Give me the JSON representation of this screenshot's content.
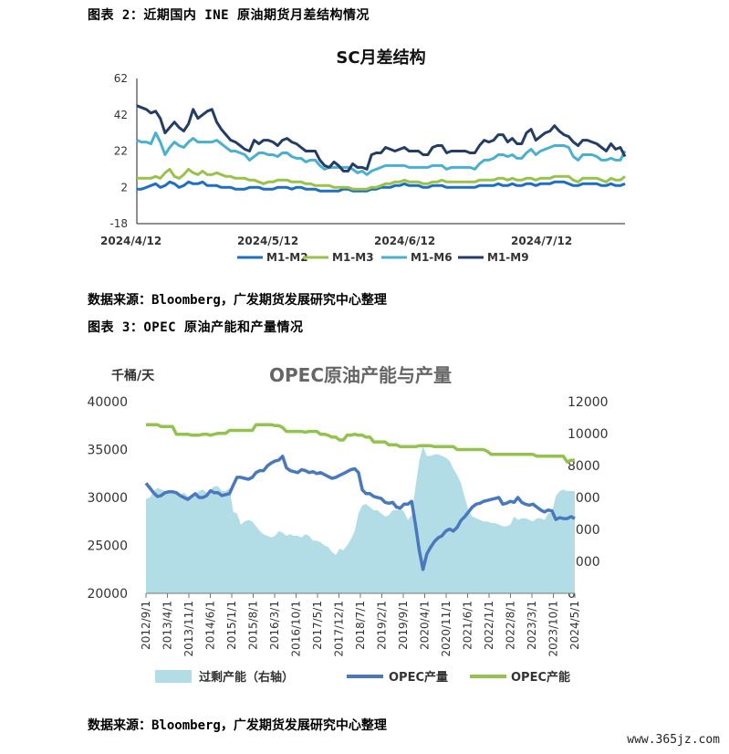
{
  "header": {
    "fig2_caption": "图表 2：近期国内 INE 原油期货月差结构情况",
    "fig3_caption": "图表 3：OPEC 原油产能和产量情况",
    "source_1": "数据来源：Bloomberg，广发期货发展研究中心整理",
    "source_2": "数据来源：Bloomberg，广发期货发展研究中心整理",
    "watermark": "www.365jz.com"
  },
  "chart_data": [
    {
      "type": "line",
      "title": "SC月差结构",
      "ylim": [
        -18,
        62
      ],
      "yticks": [
        62,
        42,
        22,
        2,
        -18
      ],
      "xtick_labels": [
        "2024/4/12",
        "2024/5/12",
        "2024/6/12",
        "2024/7/12"
      ],
      "legend_position": "bottom",
      "colors": {
        "M1-M2": "#1f6fc1",
        "M1-M3": "#9ac24b",
        "M1-M6": "#4ab0cf",
        "M1-M9": "#243d66"
      },
      "series": [
        {
          "name": "M1-M2",
          "values": [
            1,
            1,
            2,
            3,
            4,
            2,
            3,
            5,
            4,
            2,
            3,
            5,
            4,
            4,
            5,
            3,
            3,
            3,
            2,
            2,
            2,
            1,
            1,
            1,
            2,
            2,
            2,
            1,
            1,
            1,
            2,
            2,
            2,
            1,
            2,
            2,
            1,
            1,
            1,
            0,
            0,
            0,
            0,
            0,
            1,
            1,
            0,
            0,
            0,
            0,
            1,
            1,
            2,
            2,
            2,
            3,
            3,
            4,
            3,
            3,
            3,
            2,
            2,
            3,
            3,
            3,
            2,
            2,
            2,
            2,
            2,
            2,
            2,
            3,
            3,
            3,
            3,
            4,
            3,
            3,
            4,
            3,
            3,
            4,
            4,
            3,
            4,
            4,
            4,
            5,
            5,
            5,
            4,
            3,
            3,
            4,
            4,
            4,
            4,
            3,
            3,
            4,
            3,
            3,
            4
          ]
        },
        {
          "name": "M1-M3",
          "values": [
            7,
            7,
            7,
            7,
            8,
            7,
            10,
            12,
            8,
            7,
            9,
            12,
            10,
            9,
            11,
            9,
            9,
            10,
            9,
            8,
            8,
            7,
            7,
            7,
            6,
            6,
            5,
            4,
            5,
            5,
            6,
            6,
            6,
            5,
            5,
            5,
            4,
            4,
            3,
            3,
            3,
            3,
            2,
            2,
            2,
            2,
            1,
            1,
            1,
            1,
            2,
            2,
            3,
            4,
            4,
            5,
            5,
            6,
            5,
            5,
            5,
            4,
            4,
            5,
            5,
            6,
            5,
            5,
            5,
            5,
            5,
            5,
            5,
            6,
            6,
            6,
            6,
            7,
            7,
            6,
            7,
            6,
            6,
            7,
            7,
            6,
            7,
            7,
            7,
            8,
            8,
            8,
            8,
            6,
            5,
            7,
            7,
            7,
            7,
            6,
            5,
            7,
            6,
            6,
            8
          ]
        },
        {
          "name": "M1-M6",
          "values": [
            28,
            27,
            27,
            26,
            32,
            27,
            20,
            24,
            27,
            25,
            24,
            27,
            29,
            27,
            27,
            27,
            27,
            28,
            26,
            24,
            22,
            22,
            21,
            20,
            17,
            19,
            21,
            21,
            20,
            20,
            19,
            21,
            21,
            19,
            18,
            18,
            16,
            17,
            17,
            14,
            12,
            13,
            13,
            13,
            13,
            13,
            12,
            10,
            11,
            9,
            11,
            12,
            13,
            14,
            14,
            14,
            14,
            14,
            13,
            13,
            13,
            13,
            13,
            14,
            14,
            14,
            12,
            13,
            13,
            13,
            13,
            13,
            12,
            15,
            17,
            17,
            18,
            20,
            20,
            19,
            20,
            18,
            18,
            21,
            23,
            20,
            22,
            23,
            24,
            25,
            25,
            25,
            24,
            19,
            17,
            20,
            20,
            20,
            19,
            17,
            17,
            18,
            17,
            17,
            22
          ]
        },
        {
          "name": "M1-M9",
          "values": [
            47,
            46,
            45,
            43,
            44,
            40,
            32,
            35,
            38,
            35,
            33,
            37,
            45,
            40,
            42,
            44,
            45,
            38,
            34,
            31,
            28,
            27,
            25,
            23,
            22,
            28,
            26,
            28,
            28,
            27,
            25,
            28,
            29,
            27,
            26,
            24,
            22,
            22,
            22,
            17,
            14,
            13,
            16,
            14,
            11,
            11,
            15,
            13,
            13,
            12,
            20,
            21,
            21,
            24,
            23,
            22,
            23,
            24,
            22,
            22,
            22,
            20,
            20,
            24,
            25,
            25,
            21,
            22,
            22,
            22,
            22,
            21,
            21,
            25,
            28,
            27,
            28,
            31,
            31,
            27,
            29,
            26,
            26,
            32,
            34,
            28,
            30,
            32,
            33,
            36,
            33,
            31,
            30,
            27,
            25,
            28,
            28,
            27,
            26,
            24,
            22,
            26,
            23,
            24,
            19
          ]
        }
      ]
    },
    {
      "type": "line",
      "title": "OPEC原油产能与产量",
      "y_unit": "千桶/天",
      "ylim": [
        20000,
        40000
      ],
      "yticks": [
        40000,
        35000,
        30000,
        25000,
        20000
      ],
      "y2lim": [
        0,
        12000
      ],
      "y2ticks": [
        12000,
        10000,
        8000,
        6000,
        4000,
        2000,
        0
      ],
      "xtick_labels": [
        "2012/9/1",
        "2013/4/1",
        "2013/11/1",
        "2014/6/1",
        "2015/1/1",
        "2015/8/1",
        "2016/3/1",
        "2016/10/1",
        "2017/5/1",
        "2017/12/1",
        "2018/7/1",
        "2019/2/1",
        "2019/9/1",
        "2020/4/1",
        "2020/11/1",
        "2021/6/1",
        "2022/1/1",
        "2022/8/1",
        "2023/3/1",
        "2023/10/1",
        "2024/5/1"
      ],
      "legend_position": "bottom",
      "colors": {
        "过剩产能（右轴）": "#b3dde6",
        "OPEC产量": "#4a78bd",
        "OPEC产能": "#93c34e"
      },
      "series": [
        {
          "name": "过剩产能（右轴）",
          "axis": "right",
          "kind": "area",
          "values": [
            5900,
            6000,
            6400,
            6600,
            6500,
            6400,
            6300,
            6300,
            6200,
            6200,
            6300,
            6100,
            6000,
            6200,
            6400,
            6500,
            6300,
            6500,
            6700,
            6700,
            6400,
            6400,
            6600,
            5100,
            5000,
            4300,
            4500,
            4600,
            4500,
            4200,
            3900,
            3700,
            3600,
            3500,
            3600,
            3900,
            3800,
            3600,
            3700,
            3600,
            3600,
            3500,
            3700,
            3600,
            3300,
            3300,
            3200,
            3000,
            2900,
            2600,
            2400,
            2800,
            2700,
            3000,
            3400,
            3900,
            5000,
            5500,
            5600,
            5400,
            5200,
            5200,
            5000,
            4800,
            4900,
            5200,
            5200,
            5300,
            5100,
            4600,
            4900,
            6600,
            8300,
            9200,
            8600,
            8600,
            8700,
            8700,
            8600,
            8500,
            8300,
            7800,
            7400,
            6900,
            6000,
            5200,
            4800,
            4700,
            4600,
            4500,
            4500,
            4400,
            4400,
            4300,
            4200,
            4200,
            4300,
            4800,
            4600,
            4700,
            4700,
            4600,
            4500,
            4700,
            4700,
            4600,
            5000,
            5100,
            6100,
            6400,
            6500,
            6400,
            6400,
            6400
          ]
        },
        {
          "name": "OPEC产量",
          "axis": "left",
          "kind": "line",
          "values": [
            31500,
            31000,
            30500,
            30100,
            30200,
            30500,
            30600,
            30600,
            30500,
            30200,
            30000,
            29800,
            30100,
            30400,
            30000,
            30000,
            30200,
            30700,
            30500,
            30500,
            30200,
            30300,
            30400,
            31300,
            32100,
            32100,
            32000,
            31900,
            32100,
            32600,
            32800,
            32800,
            33300,
            33600,
            33800,
            33900,
            34300,
            33100,
            32800,
            32700,
            32600,
            32900,
            32800,
            32600,
            32700,
            32500,
            32600,
            32400,
            32200,
            32000,
            32100,
            32300,
            32500,
            32700,
            32900,
            33000,
            32600,
            30800,
            30400,
            30400,
            30100,
            30000,
            29900,
            29500,
            29400,
            29500,
            29000,
            28900,
            29300,
            29300,
            29600,
            27200,
            24500,
            22500,
            24100,
            24800,
            25400,
            25800,
            26000,
            26500,
            26700,
            26500,
            26900,
            27600,
            28000,
            28500,
            29000,
            29300,
            29400,
            29600,
            29700,
            29800,
            29900,
            30000,
            29300,
            29400,
            29600,
            29500,
            30000,
            29500,
            29300,
            29200,
            29300,
            29000,
            28700,
            28500,
            28700,
            28600,
            27700,
            27900,
            27800,
            27800,
            28000,
            27800
          ]
        },
        {
          "name": "OPEC产能",
          "axis": "left",
          "kind": "line",
          "values": [
            37600,
            37600,
            37600,
            37600,
            37400,
            37400,
            37400,
            37400,
            36600,
            36600,
            36600,
            36600,
            36500,
            36500,
            36500,
            36600,
            36600,
            36500,
            36600,
            36700,
            36700,
            36700,
            37000,
            37000,
            37000,
            37000,
            37000,
            37000,
            37000,
            37600,
            37600,
            37600,
            37600,
            37600,
            37500,
            37500,
            37300,
            36900,
            36900,
            36900,
            36900,
            36900,
            36800,
            36900,
            36900,
            36900,
            36600,
            36600,
            36500,
            36300,
            36300,
            36000,
            36000,
            36500,
            36500,
            36600,
            36500,
            36500,
            36300,
            36300,
            35800,
            35800,
            35800,
            35800,
            35500,
            35500,
            35500,
            35300,
            35300,
            35300,
            35300,
            35300,
            35400,
            35400,
            35400,
            35400,
            35300,
            35300,
            35300,
            35300,
            35300,
            35300,
            35000,
            35000,
            35000,
            35000,
            35000,
            35000,
            35000,
            35000,
            34800,
            34500,
            34500,
            34500,
            34500,
            34500,
            34500,
            34500,
            34500,
            34500,
            34500,
            34500,
            34500,
            34300,
            34300,
            34300,
            34300,
            34300,
            34300,
            34300,
            34300,
            33700,
            33900,
            33900
          ]
        }
      ]
    }
  ]
}
